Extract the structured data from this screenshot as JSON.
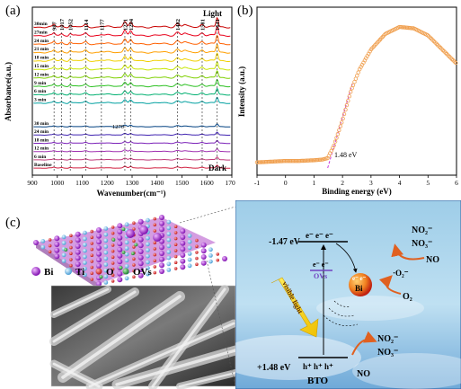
{
  "panel_a": {
    "label": "(a)",
    "ylabel": "Absorbance(a.u.)",
    "xlabel": "Wavenumber(cm⁻¹)",
    "x_ticks": [
      "900",
      "1000",
      "1100",
      "1200",
      "1300",
      "1400",
      "1500",
      "1600",
      "1700"
    ],
    "peaks": [
      "987",
      "1017",
      "1052",
      "1114",
      "1177",
      "1271",
      "1294",
      "1482",
      "1581",
      "1641"
    ],
    "peak_1270": "1270",
    "light_label": "Light",
    "dark_label": "Dark",
    "light_times": [
      "30min",
      "27min",
      "24 min",
      "21 min",
      "18 min",
      "15 min",
      "12 min",
      "9 min",
      "6 min",
      "3 min"
    ],
    "dark_times": [
      "30 min",
      "24 min",
      "18 min",
      "12 min",
      "6 min",
      "Baseline"
    ],
    "light_colors": [
      "#c80000",
      "#e8001a",
      "#ff6000",
      "#ff9f00",
      "#f0d000",
      "#c8e600",
      "#7ed000",
      "#2bc020",
      "#00b070",
      "#00a0a0"
    ],
    "dark_colors": [
      "#004080",
      "#3f22b0",
      "#7a20b8",
      "#a030b0",
      "#c03878",
      "#d02040"
    ]
  },
  "panel_b": {
    "label": "(b)",
    "ylabel": "Intensity (a.u.)",
    "xlabel": "Binding energy (eV)",
    "x_ticks": [
      "-1",
      "0",
      "1",
      "2",
      "3",
      "4",
      "5",
      "6"
    ],
    "annotation": "1.48 eV"
  },
  "chart_data": {
    "type": "line",
    "title": "",
    "xlabel": "Binding energy (eV)",
    "ylabel": "Intensity (a.u.)",
    "xlim": [
      -1,
      6
    ],
    "x": [
      -1.0,
      -0.5,
      0.0,
      0.5,
      1.0,
      1.3,
      1.48,
      1.7,
      2.0,
      2.3,
      2.6,
      3.0,
      3.5,
      4.0,
      4.5,
      5.0,
      5.5,
      6.0
    ],
    "series": [
      {
        "values": [
          0.04,
          0.045,
          0.05,
          0.05,
          0.055,
          0.06,
          0.07,
          0.16,
          0.34,
          0.55,
          0.7,
          0.84,
          0.95,
          1.0,
          0.99,
          0.94,
          0.84,
          0.74
        ]
      }
    ],
    "annotation": "1.48 eV",
    "grid": false
  },
  "panel_c": {
    "label": "(c)",
    "legend": [
      {
        "symbol": "Bi",
        "color": "#a030d0"
      },
      {
        "symbol": "Ti",
        "color": "#6fb9e6"
      },
      {
        "symbol": "O",
        "color": "#e03030"
      },
      {
        "symbol": "OVs",
        "color": "#3aa048"
      }
    ],
    "cb_energy": "-1.47 eV",
    "vb_energy": "+1.48 eV",
    "electrons": "e⁻ e⁻ e⁻",
    "electrons_ovs": "e⁻ e⁻",
    "ovs_label": "OVs",
    "holes": "h⁺ h⁺ h⁺",
    "visible_light": "visible light",
    "bi_label": "Bi",
    "bi_electrons": "e⁻ e⁻",
    "o2_radical": "·O₂⁻",
    "o2": "O₂",
    "no2_top": "NO₂⁻",
    "no3_top": "NO₃⁻",
    "no_top": "NO",
    "no2_bottom": "NO₂⁻",
    "no3_bottom": "NO₃⁻",
    "no_bottom": "NO",
    "bto": "BTO"
  }
}
